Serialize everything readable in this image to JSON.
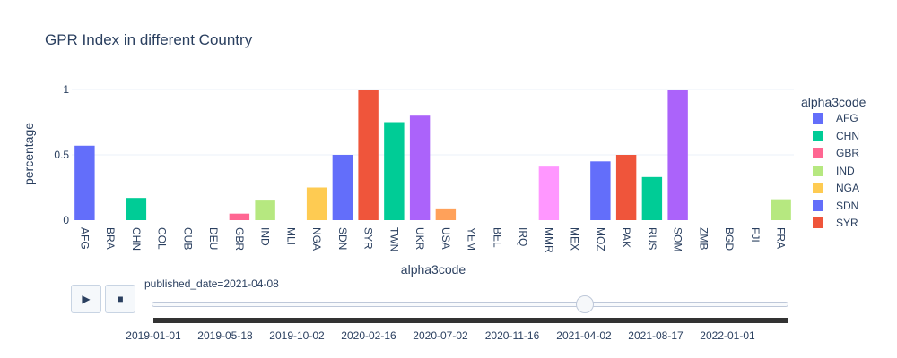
{
  "chart_data": {
    "type": "bar",
    "title": "GPR Index in different Country",
    "xlabel": "alpha3code",
    "ylabel": "percentage",
    "ylim": [
      0,
      1.1
    ],
    "yticks": [
      "0",
      "0.5",
      "1"
    ],
    "categories": [
      "AFG",
      "BRA",
      "CHN",
      "COL",
      "CUB",
      "DEU",
      "GBR",
      "IND",
      "MLI",
      "NGA",
      "SDN",
      "SYR",
      "TWN",
      "UKR",
      "USA",
      "YEM",
      "BEL",
      "IRQ",
      "MMR",
      "MEX",
      "MOZ",
      "PAK",
      "RUS",
      "SOM",
      "ZMB",
      "BGD",
      "FJI",
      "FRA"
    ],
    "values": [
      0.57,
      0,
      0.17,
      0,
      0,
      0,
      0.05,
      0.15,
      0,
      0.25,
      0.5,
      1,
      0.75,
      0.8,
      0.09,
      0,
      0,
      0,
      0.41,
      0,
      0.45,
      0.5,
      0.33,
      1,
      0,
      0,
      0,
      0.16
    ],
    "bar_colors": [
      "#636efa",
      "#EF553B",
      "#00cc96",
      "#ab63fa",
      "#FFA15A",
      "#19d3f3",
      "#FF6692",
      "#B6E880",
      "#FF97FF",
      "#FECB52",
      "#636efa",
      "#EF553B",
      "#00cc96",
      "#ab63fa",
      "#FFA15A",
      "#19d3f3",
      "#FF6692",
      "#B6E880",
      "#FF97FF",
      "#FECB52",
      "#636efa",
      "#EF553B",
      "#00cc96",
      "#ab63fa",
      "#FFA15A",
      "#19d3f3",
      "#FF6692",
      "#B6E880"
    ],
    "grid": true,
    "legend": {
      "title": "alpha3code",
      "placement": "right",
      "items": [
        {
          "name": "AFG",
          "color": "#636efa"
        },
        {
          "name": "CHN",
          "color": "#00cc96"
        },
        {
          "name": "GBR",
          "color": "#FF6692"
        },
        {
          "name": "IND",
          "color": "#B6E880"
        },
        {
          "name": "NGA",
          "color": "#FECB52"
        },
        {
          "name": "SDN",
          "color": "#636efa"
        },
        {
          "name": "SYR",
          "color": "#EF553B"
        }
      ]
    }
  },
  "animation": {
    "play_icon": "▶",
    "stop_icon": "■",
    "current_label": "published_date=2021-04-08",
    "slider_position": 0.68,
    "slider_ticks": [
      "2019-01-01",
      "2019-05-18",
      "2019-10-02",
      "2020-02-16",
      "2020-07-02",
      "2020-11-16",
      "2021-04-02",
      "2021-08-17",
      "2022-01-01"
    ]
  }
}
